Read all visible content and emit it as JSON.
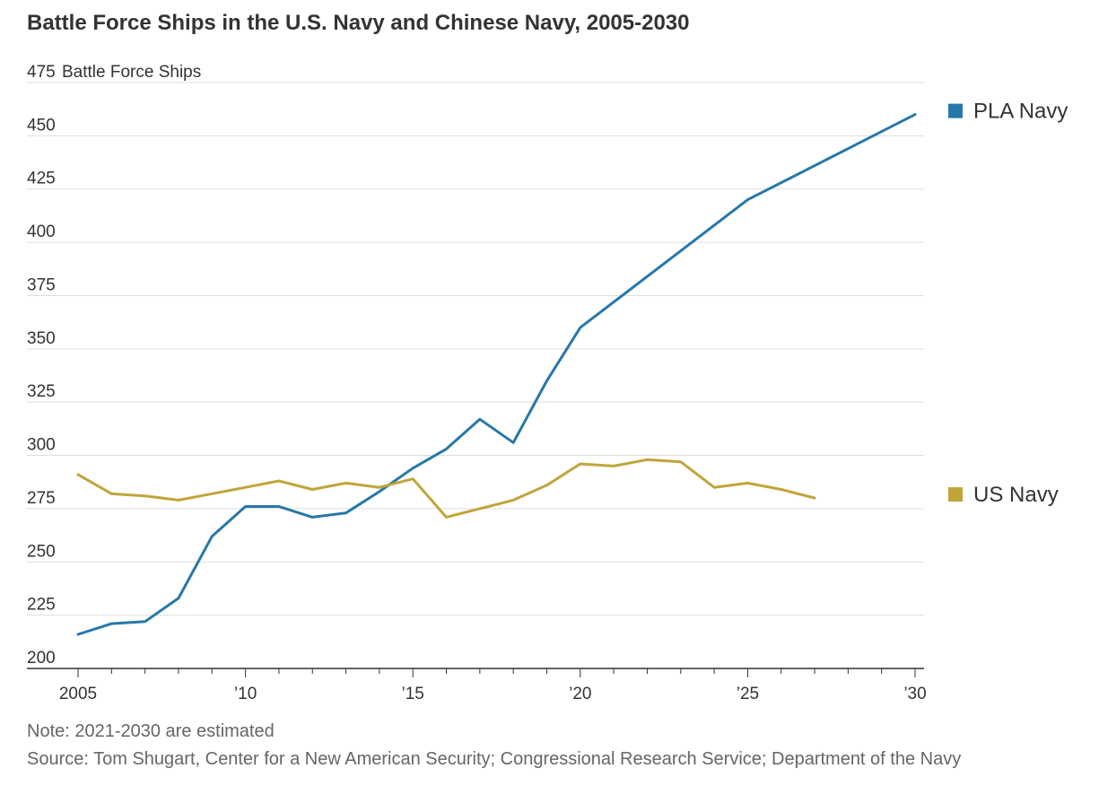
{
  "title": "Battle Force Ships in the U.S. Navy and Chinese Navy, 2005-2030",
  "note": "Note: 2021-2030 are estimated",
  "source": "Source: Tom Shugart, Center for a New American Security; Congressional Research Service; Department of the Navy",
  "colors": {
    "pla": "#2678a8",
    "us": "#c0a53a",
    "grid": "#dddddd",
    "axis": "#333333",
    "text": "#333333"
  },
  "chart_data": {
    "type": "line",
    "title": "Battle Force Ships in the U.S. Navy and Chinese Navy, 2005-2030",
    "ylabel": "Battle Force Ships",
    "xlabel": "",
    "xlim": [
      2005,
      2030
    ],
    "ylim": [
      200,
      475
    ],
    "yticks": [
      200,
      225,
      250,
      275,
      300,
      325,
      350,
      375,
      400,
      425,
      450,
      475
    ],
    "ytick_labels": [
      "200",
      "225",
      "250",
      "275",
      "300",
      "325",
      "350",
      "375",
      "400",
      "425",
      "450",
      "475"
    ],
    "xticks": [
      2005,
      2010,
      2015,
      2020,
      2025,
      2030
    ],
    "xtick_labels": [
      "2005",
      "’10",
      "’15",
      "’20",
      "’25",
      "’30"
    ],
    "grid": true,
    "legend_position": "right",
    "series": [
      {
        "name": "PLA Navy",
        "color": "#2678a8",
        "x": [
          2005,
          2006,
          2007,
          2008,
          2009,
          2010,
          2011,
          2012,
          2013,
          2014,
          2015,
          2016,
          2017,
          2018,
          2019,
          2020,
          2025,
          2030
        ],
        "values": [
          216,
          221,
          222,
          233,
          262,
          276,
          276,
          271,
          273,
          283,
          294,
          303,
          317,
          306,
          335,
          360,
          420,
          460
        ]
      },
      {
        "name": "US Navy",
        "color": "#c0a53a",
        "x": [
          2005,
          2006,
          2007,
          2008,
          2009,
          2010,
          2011,
          2012,
          2013,
          2014,
          2015,
          2016,
          2017,
          2018,
          2019,
          2020,
          2021,
          2022,
          2023,
          2024,
          2025,
          2026,
          2027
        ],
        "values": [
          291,
          282,
          281,
          279,
          282,
          285,
          288,
          284,
          287,
          285,
          289,
          271,
          275,
          279,
          286,
          296,
          295,
          298,
          297,
          285,
          287,
          284,
          280
        ]
      }
    ]
  }
}
